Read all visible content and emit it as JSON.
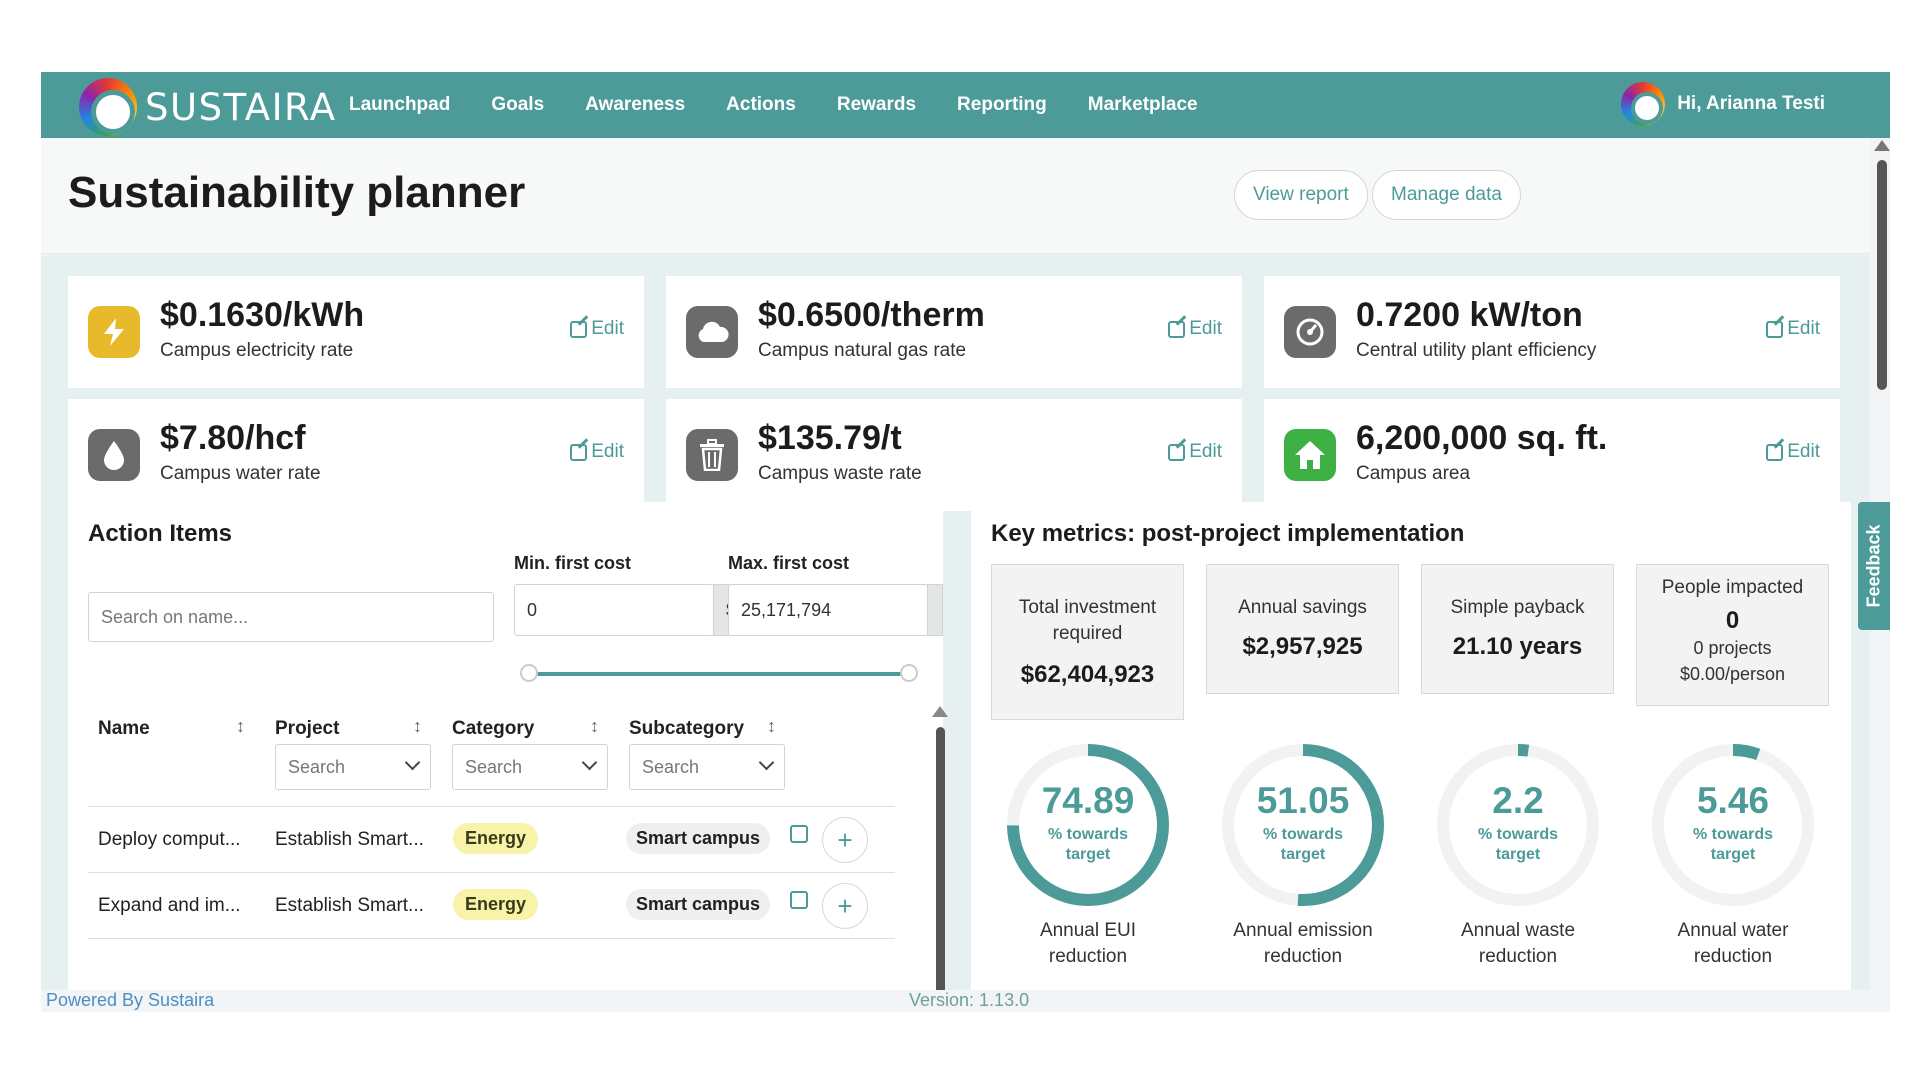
{
  "nav": {
    "brand": "SUSTAIRA",
    "items": [
      "Launchpad",
      "Goals",
      "Awareness",
      "Actions",
      "Rewards",
      "Reporting",
      "Marketplace"
    ],
    "user_greeting": "Hi, Arianna Testi"
  },
  "header": {
    "title": "Sustainability planner",
    "view_report": "View report",
    "manage_data": "Manage data"
  },
  "rates": [
    {
      "value": "$0.1630/kWh",
      "label": "Campus electricity rate",
      "edit": "Edit",
      "icon": "lightning-icon",
      "color": "#e8b92a"
    },
    {
      "value": "$0.6500/therm",
      "label": "Campus natural gas rate",
      "edit": "Edit",
      "icon": "cloud-icon",
      "color": "#6b6b6b"
    },
    {
      "value": "0.7200 kW/ton",
      "label": "Central utility plant efficiency",
      "edit": "Edit",
      "icon": "gauge-icon",
      "color": "#6b6b6b"
    },
    {
      "value": "$7.80/hcf",
      "label": "Campus water rate",
      "edit": "Edit",
      "icon": "water-drop-icon",
      "color": "#6b6b6b"
    },
    {
      "value": "$135.79/t",
      "label": "Campus waste rate",
      "edit": "Edit",
      "icon": "trash-icon",
      "color": "#6b6b6b"
    },
    {
      "value": "6,200,000 sq. ft.",
      "label": "Campus area",
      "edit": "Edit",
      "icon": "home-icon",
      "color": "#3cb043"
    }
  ],
  "action_items": {
    "title": "Action Items",
    "search_placeholder": "Search on name...",
    "min_label": "Min. first cost",
    "max_label": "Max. first cost",
    "min_value": "0",
    "max_value": "25,171,794",
    "currency": "$",
    "columns": [
      "Name",
      "Project",
      "Category",
      "Subcategory"
    ],
    "filter_placeholder": "Search",
    "rows": [
      {
        "name": "Deploy comput...",
        "project": "Establish Smart...",
        "category": "Energy",
        "subcategory": "Smart campus"
      },
      {
        "name": "Expand and im...",
        "project": "Establish Smart...",
        "category": "Energy",
        "subcategory": "Smart campus"
      }
    ]
  },
  "key_metrics": {
    "title": "Key metrics: post-project implementation",
    "total_investment_label": "Total investment required",
    "total_investment": "$62,404,923",
    "annual_savings_label": "Annual savings",
    "annual_savings": "$2,957,925",
    "payback_label": "Simple payback",
    "payback": "21.10 years",
    "people_label": "People impacted",
    "people": "0",
    "projects": "0 projects",
    "per_person": "$0.00/person",
    "gauges": [
      {
        "value": "74.89",
        "pct": 74.89,
        "sub": "% towards target",
        "label": "Annual EUI reduction"
      },
      {
        "value": "51.05",
        "pct": 51.05,
        "sub": "% towards target",
        "label": "Annual emission reduction"
      },
      {
        "value": "2.2",
        "pct": 2.2,
        "sub": "% towards target",
        "label": "Annual waste reduction"
      },
      {
        "value": "5.46",
        "pct": 5.46,
        "sub": "% towards target",
        "label": "Annual water reduction"
      }
    ]
  },
  "feedback": "Feedback",
  "footer": {
    "powered": "Powered By Sustaira",
    "version": "Version: 1.13.0"
  },
  "colors": {
    "accent": "#4c9b99",
    "energy_badge": "#f7f3a8"
  }
}
